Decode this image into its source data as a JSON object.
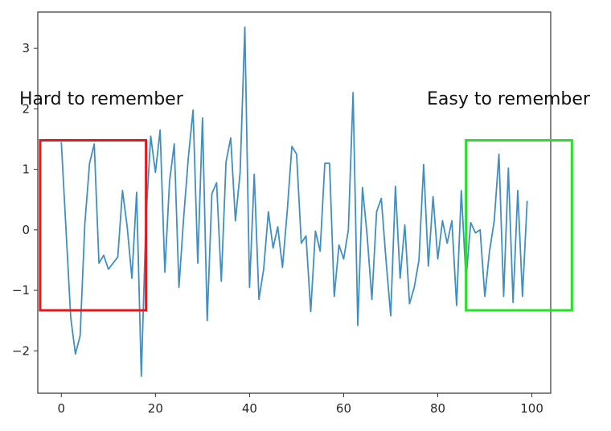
{
  "chart_data": {
    "type": "line",
    "title": "",
    "xlabel": "",
    "ylabel": "",
    "xlim": [
      -5,
      104
    ],
    "ylim": [
      -2.7,
      3.6
    ],
    "x_ticks": [
      0,
      20,
      40,
      60,
      80,
      100
    ],
    "y_ticks": [
      -2,
      -1,
      0,
      1,
      2,
      3
    ],
    "grid": false,
    "series": [
      {
        "color": "#3f8fc5",
        "x": [
          0,
          1,
          2,
          3,
          4,
          5,
          6,
          7,
          8,
          9,
          10,
          11,
          12,
          13,
          14,
          15,
          16,
          17,
          18,
          19,
          20,
          21,
          22,
          23,
          24,
          25,
          26,
          27,
          28,
          29,
          30,
          31,
          32,
          33,
          34,
          35,
          36,
          37,
          38,
          39,
          40,
          41,
          42,
          43,
          44,
          45,
          46,
          47,
          48,
          49,
          50,
          51,
          52,
          53,
          54,
          55,
          56,
          57,
          58,
          59,
          60,
          61,
          62,
          63,
          64,
          65,
          66,
          67,
          68,
          69,
          70,
          71,
          72,
          73,
          74,
          75,
          76,
          77,
          78,
          79,
          80,
          81,
          82,
          83,
          84,
          85,
          86,
          87,
          88,
          89,
          90,
          91,
          92,
          93,
          94,
          95,
          96,
          97,
          98,
          99
        ],
        "y": [
          1.45,
          0.0,
          -1.45,
          -2.05,
          -1.75,
          0.1,
          1.1,
          1.42,
          -0.55,
          -0.42,
          -0.65,
          -0.55,
          -0.45,
          0.65,
          0.05,
          -0.8,
          0.62,
          -2.42,
          0.2,
          1.55,
          0.95,
          1.65,
          -0.7,
          0.8,
          1.42,
          -0.95,
          0.2,
          1.2,
          1.98,
          -0.55,
          1.85,
          -1.5,
          0.6,
          0.78,
          -0.85,
          1.12,
          1.52,
          0.15,
          0.95,
          3.35,
          -0.95,
          0.92,
          -1.15,
          -0.65,
          0.3,
          -0.3,
          0.05,
          -0.62,
          0.3,
          1.38,
          1.25,
          -0.22,
          -0.1,
          -1.35,
          -0.02,
          -0.35,
          1.1,
          1.1,
          -1.1,
          -0.25,
          -0.48,
          0.0,
          2.27,
          -1.58,
          0.7,
          -0.1,
          -1.15,
          0.3,
          0.52,
          -0.5,
          -1.42,
          0.72,
          -0.8,
          0.08,
          -1.22,
          -0.95,
          -0.5,
          1.08,
          -0.6,
          0.55,
          -0.48,
          0.15,
          -0.22,
          0.15,
          -1.25,
          0.65,
          -0.82,
          0.12,
          -0.05,
          0.0,
          -1.1,
          -0.35,
          0.15,
          1.25,
          -1.1,
          1.02,
          -1.2,
          0.65,
          -1.1,
          0.48
        ]
      }
    ],
    "annotations": [
      {
        "text": "Hard to remember",
        "x0": -4.5,
        "x1": 18,
        "y0": -1.33,
        "y1": 1.48,
        "color": "#e01b1b"
      },
      {
        "text": "Easy to remember",
        "x0": 86,
        "x1": 108.5,
        "y0": -1.33,
        "y1": 1.48,
        "color": "#2adf2a"
      }
    ]
  }
}
